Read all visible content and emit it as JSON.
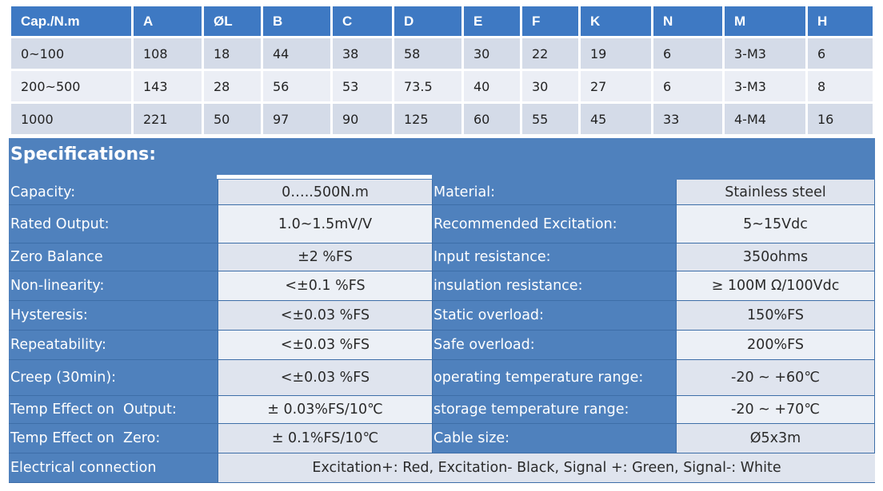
{
  "dimensions": {
    "headers": [
      "Cap./N.m",
      "A",
      "ØL",
      "B",
      "C",
      "D",
      "E",
      "F",
      "K",
      "N",
      "M",
      "H"
    ],
    "rows": [
      [
        "0~100",
        "108",
        "18",
        "44",
        "38",
        "58",
        "30",
        "22",
        "19",
        "6",
        "3-M3",
        "6"
      ],
      [
        "200~500",
        "143",
        "28",
        "56",
        "53",
        "73.5",
        "40",
        "30",
        "27",
        "6",
        "3-M3",
        "8"
      ],
      [
        "1000",
        "221",
        "50",
        "97",
        "90",
        "125",
        "60",
        "55",
        "45",
        "33",
        "4-M4",
        "16"
      ]
    ]
  },
  "specs": {
    "title": "Specifications:",
    "rows": [
      {
        "left_label": "Capacity:",
        "left_value": "0…..500N.m",
        "right_label": "Material:",
        "right_value": "Stainless steel"
      },
      {
        "left_label": "Rated Output:",
        "left_value": "1.0~1.5mV/V",
        "right_label": "Recommended Excitation:",
        "right_value": "5~15Vdc"
      },
      {
        "left_label": "Zero Balance",
        "left_value": "±2 %FS",
        "right_label": "Input resistance:",
        "right_value": "350ohms"
      },
      {
        "left_label": "Non-linearity:",
        "left_value": "<±0.1 %FS",
        "right_label": "insulation resistance:",
        "right_value": "≥ 100M Ω/100Vdc"
      },
      {
        "left_label": "Hysteresis:",
        "left_value": "<±0.03 %FS",
        "right_label": "Static overload:",
        "right_value": "150%FS"
      },
      {
        "left_label": "Repeatability:",
        "left_value": "<±0.03 %FS",
        "right_label": "Safe overload:",
        "right_value": "200%FS"
      },
      {
        "left_label": "Creep (30min):",
        "left_value": "<±0.03 %FS",
        "right_label": "operating temperature range:",
        "right_value": "-20 ~ +60℃"
      },
      {
        "left_label": "Temp Effect on  Output:",
        "left_value": "± 0.03%FS/10℃",
        "right_label": "storage temperature range:",
        "right_value": "-20 ~ +70℃"
      },
      {
        "left_label": "Temp Effect on  Zero:",
        "left_value": "± 0.1%FS/10℃",
        "right_label": "Cable size:",
        "right_value": "Ø5x3m"
      }
    ],
    "electrical": {
      "label": "Electrical connection",
      "value": "Excitation+: Red, Excitation- Black, Signal +: Green, Signal-: White"
    }
  }
}
